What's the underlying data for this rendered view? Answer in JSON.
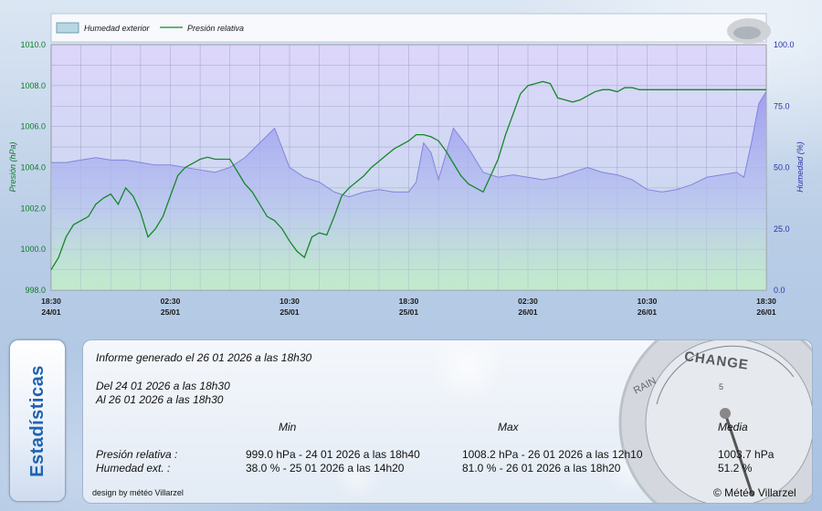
{
  "chart_data": {
    "type": "area",
    "legend": [
      "Humedad exterior",
      "Presión relativa"
    ],
    "legend_placement": "top-left",
    "ylabel_left": "Presión (hPa)",
    "ylabel_right": "Humedad (%)",
    "ylim_left": [
      998,
      1010
    ],
    "ylim_right": [
      0,
      100
    ],
    "yticks_left": [
      "998.0",
      "1000.0",
      "1002.0",
      "1004.0",
      "1006.0",
      "1008.0",
      "1010.0"
    ],
    "yticks_right": [
      "0.0",
      "25.0",
      "50.0",
      "75.0",
      "100.0"
    ],
    "xticks": [
      {
        "t": "18:30",
        "d": "24/01",
        "h": 0
      },
      {
        "t": "02:30",
        "d": "25/01",
        "h": 8
      },
      {
        "t": "10:30",
        "d": "25/01",
        "h": 16
      },
      {
        "t": "18:30",
        "d": "25/01",
        "h": 24
      },
      {
        "t": "02:30",
        "d": "26/01",
        "h": 32
      },
      {
        "t": "10:30",
        "d": "26/01",
        "h": 40
      },
      {
        "t": "18:30",
        "d": "26/01",
        "h": 48
      }
    ],
    "grid": true,
    "colors": {
      "humidity_fill": "#a9a9f2",
      "humidity_line": "#8080d8",
      "pressure_line": "#16872a",
      "plot_top": "#dcd6fb",
      "plot_bottom": "#c2eccc"
    },
    "series": [
      {
        "name": "Presión relativa",
        "axis": "left",
        "x": [
          0,
          0.5,
          1,
          1.5,
          2,
          2.5,
          3,
          3.5,
          4,
          4.5,
          5,
          5.5,
          6,
          6.5,
          7,
          7.5,
          8,
          8.5,
          9,
          9.5,
          10,
          10.5,
          11,
          11.5,
          12,
          12.5,
          13,
          13.5,
          14,
          14.5,
          15,
          15.5,
          16,
          16.5,
          17,
          17.5,
          18,
          18.5,
          19,
          19.5,
          20,
          20.5,
          21,
          21.5,
          22,
          22.5,
          23,
          23.5,
          24,
          24.5,
          25,
          25.5,
          26,
          26.5,
          27,
          27.5,
          28,
          28.5,
          29,
          29.5,
          30,
          30.5,
          31,
          31.5,
          32,
          32.5,
          33,
          33.5,
          34,
          34.5,
          35,
          35.5,
          36,
          36.5,
          37,
          37.5,
          38,
          38.5,
          39,
          39.5,
          40,
          40.5,
          41,
          41.5,
          42,
          42.5,
          43,
          43.5,
          44,
          44.5,
          45,
          45.5,
          46,
          46.5,
          47,
          47.5,
          48
        ],
        "values": [
          999.0,
          999.6,
          1000.6,
          1001.2,
          1001.4,
          1001.6,
          1002.2,
          1002.5,
          1002.7,
          1002.2,
          1003.0,
          1002.6,
          1001.8,
          1000.6,
          1001.0,
          1001.6,
          1002.6,
          1003.6,
          1004.0,
          1004.2,
          1004.4,
          1004.5,
          1004.4,
          1004.4,
          1004.4,
          1003.8,
          1003.2,
          1002.8,
          1002.2,
          1001.6,
          1001.4,
          1001.0,
          1000.4,
          999.9,
          999.6,
          1000.6,
          1000.8,
          1000.7,
          1001.6,
          1002.6,
          1003.0,
          1003.3,
          1003.6,
          1004.0,
          1004.3,
          1004.6,
          1004.9,
          1005.1,
          1005.3,
          1005.6,
          1005.6,
          1005.5,
          1005.3,
          1004.8,
          1004.2,
          1003.6,
          1003.2,
          1003.0,
          1002.8,
          1003.6,
          1004.4,
          1005.6,
          1006.6,
          1007.6,
          1008.0,
          1008.1,
          1008.2,
          1008.1,
          1007.4,
          1007.3,
          1007.2,
          1007.3,
          1007.5,
          1007.7,
          1007.8,
          1007.8,
          1007.7,
          1007.9,
          1007.9,
          1007.8,
          1007.8,
          1007.8,
          1007.8,
          1007.8,
          1007.8,
          1007.8,
          1007.8,
          1007.8,
          1007.8,
          1007.8,
          1007.8,
          1007.8,
          1007.8,
          1007.8,
          1007.8,
          1007.8,
          1007.8
        ]
      },
      {
        "name": "Humedad exterior",
        "axis": "right",
        "x": [
          0,
          1,
          2,
          3,
          4,
          5,
          6,
          7,
          8,
          9,
          10,
          11,
          12,
          13,
          14,
          15,
          16,
          17,
          18,
          19,
          20,
          21,
          22,
          23,
          24,
          24.5,
          25,
          25.5,
          26,
          27,
          28,
          29,
          30,
          31,
          32,
          33,
          34,
          35,
          36,
          37,
          38,
          39,
          40,
          41,
          42,
          43,
          44,
          45,
          46,
          46.5,
          47,
          47.5,
          48
        ],
        "values": [
          52,
          52,
          53,
          54,
          53,
          53,
          52,
          51,
          51,
          50,
          49,
          48,
          50,
          54,
          60,
          66,
          50,
          46,
          44,
          40,
          38,
          40,
          41,
          40,
          40,
          44,
          60,
          56,
          45,
          66,
          58,
          48,
          46,
          47,
          46,
          45,
          46,
          48,
          50,
          48,
          47,
          45,
          41,
          40,
          41,
          43,
          46,
          47,
          48,
          46,
          60,
          76,
          81
        ]
      }
    ]
  },
  "stats": {
    "tab_label": "Estadísticas",
    "report_line": "Informe generado el 26 01 2026 a las 18h30",
    "from_line": "Del 24 01 2026 a las 18h30",
    "to_line": "Al 26 01 2026 a las 18h30",
    "col_min": "Min",
    "col_max": "Max",
    "col_avg": "Media",
    "pressure": {
      "label": "Presión relativa :",
      "min": "999.0 hPa - 24 01 2026 a las 18h40",
      "max": "1008.2 hPa - 26 01 2026 a las 12h10",
      "avg": "1003.7 hPa"
    },
    "humidity": {
      "label": "Humedad ext. :",
      "min": "38.0 % - 25 01 2026 a las 14h20",
      "max": "81.0 % - 26 01 2026 a las 18h20",
      "avg": "51.2 %"
    },
    "design_credit": "design by météo Villarzel",
    "copyright": "© Météo Villarzel",
    "gauge_labels": {
      "change": "CHANGE",
      "rain": "RAIN",
      "five": "5"
    }
  }
}
